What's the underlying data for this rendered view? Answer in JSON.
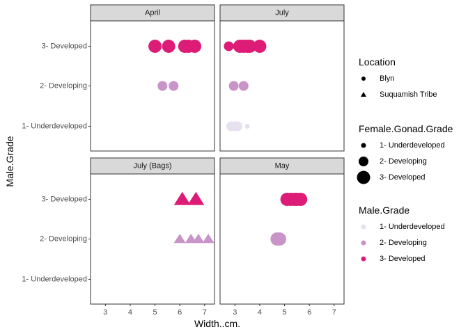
{
  "chart_data": {
    "type": "scatter",
    "facet_layout": "2x2",
    "xlabel": "Width..cm.",
    "ylabel": "Male.Grade",
    "xlim": [
      2.4,
      7.4
    ],
    "x_ticks": [
      3,
      4,
      5,
      6,
      7
    ],
    "categories": [
      "1- Underdeveloped",
      "2- Developing",
      "3- Developed"
    ],
    "grid": false,
    "legend_position": "right",
    "panels": [
      {
        "label": "April",
        "points": [
          {
            "x": 5.0,
            "y": "3- Developed",
            "location": "Blyn",
            "female_grade": 3,
            "male_grade": 3
          },
          {
            "x": 5.55,
            "y": "3- Developed",
            "location": "Blyn",
            "female_grade": 3,
            "male_grade": 3
          },
          {
            "x": 6.2,
            "y": "3- Developed",
            "location": "Blyn",
            "female_grade": 3,
            "male_grade": 3
          },
          {
            "x": 6.35,
            "y": "3- Developed",
            "location": "Blyn",
            "female_grade": 3,
            "male_grade": 3
          },
          {
            "x": 6.6,
            "y": "3- Developed",
            "location": "Blyn",
            "female_grade": 3,
            "male_grade": 3
          },
          {
            "x": 5.3,
            "y": "2- Developing",
            "location": "Blyn",
            "female_grade": 2,
            "male_grade": 2
          },
          {
            "x": 5.75,
            "y": "2- Developing",
            "location": "Blyn",
            "female_grade": 2,
            "male_grade": 2
          }
        ]
      },
      {
        "label": "July",
        "points": [
          {
            "x": 2.75,
            "y": "3- Developed",
            "location": "Blyn",
            "female_grade": 2,
            "male_grade": 3
          },
          {
            "x": 2.9,
            "y": "3- Developed",
            "location": "Blyn",
            "female_grade": 1,
            "male_grade": 3
          },
          {
            "x": 3.2,
            "y": "3- Developed",
            "location": "Blyn",
            "female_grade": 3,
            "male_grade": 3
          },
          {
            "x": 3.35,
            "y": "3- Developed",
            "location": "Blyn",
            "female_grade": 3,
            "male_grade": 3
          },
          {
            "x": 3.5,
            "y": "3- Developed",
            "location": "Blyn",
            "female_grade": 3,
            "male_grade": 3
          },
          {
            "x": 3.6,
            "y": "3- Developed",
            "location": "Blyn",
            "female_grade": 3,
            "male_grade": 3
          },
          {
            "x": 4.0,
            "y": "3- Developed",
            "location": "Blyn",
            "female_grade": 3,
            "male_grade": 3
          },
          {
            "x": 2.95,
            "y": "2- Developing",
            "location": "Blyn",
            "female_grade": 2,
            "male_grade": 2
          },
          {
            "x": 3.35,
            "y": "2- Developing",
            "location": "Blyn",
            "female_grade": 2,
            "male_grade": 2
          },
          {
            "x": 2.85,
            "y": "1- Underdeveloped",
            "location": "Blyn",
            "female_grade": 2,
            "male_grade": 1
          },
          {
            "x": 3.0,
            "y": "1- Underdeveloped",
            "location": "Blyn",
            "female_grade": 2,
            "male_grade": 1
          },
          {
            "x": 3.1,
            "y": "1- Underdeveloped",
            "location": "Blyn",
            "female_grade": 2,
            "male_grade": 1
          },
          {
            "x": 3.5,
            "y": "1- Underdeveloped",
            "location": "Blyn",
            "female_grade": 1,
            "male_grade": 1
          }
        ]
      },
      {
        "label": "July (Bags)",
        "points": [
          {
            "x": 6.1,
            "y": "3- Developed",
            "location": "Suquamish Tribe",
            "female_grade": 3,
            "male_grade": 3
          },
          {
            "x": 6.65,
            "y": "3- Developed",
            "location": "Suquamish Tribe",
            "female_grade": 3,
            "male_grade": 3
          },
          {
            "x": 6.0,
            "y": "2- Developing",
            "location": "Suquamish Tribe",
            "female_grade": 2,
            "male_grade": 2
          },
          {
            "x": 6.45,
            "y": "2- Developing",
            "location": "Suquamish Tribe",
            "female_grade": 2,
            "male_grade": 2
          },
          {
            "x": 6.75,
            "y": "2- Developing",
            "location": "Suquamish Tribe",
            "female_grade": 2,
            "male_grade": 2
          },
          {
            "x": 7.15,
            "y": "2- Developing",
            "location": "Suquamish Tribe",
            "female_grade": 2,
            "male_grade": 2
          }
        ]
      },
      {
        "label": "May",
        "points": [
          {
            "x": 5.1,
            "y": "3- Developed",
            "location": "Blyn",
            "female_grade": 3,
            "male_grade": 3
          },
          {
            "x": 5.25,
            "y": "3- Developed",
            "location": "Blyn",
            "female_grade": 3,
            "male_grade": 3
          },
          {
            "x": 5.4,
            "y": "3- Developed",
            "location": "Blyn",
            "female_grade": 3,
            "male_grade": 3
          },
          {
            "x": 5.5,
            "y": "3- Developed",
            "location": "Blyn",
            "female_grade": 3,
            "male_grade": 3
          },
          {
            "x": 5.65,
            "y": "3- Developed",
            "location": "Blyn",
            "female_grade": 3,
            "male_grade": 3
          },
          {
            "x": 4.7,
            "y": "2- Developing",
            "location": "Blyn",
            "female_grade": 3,
            "male_grade": 2
          },
          {
            "x": 4.8,
            "y": "2- Developing",
            "location": "Blyn",
            "female_grade": 3,
            "male_grade": 2
          }
        ]
      }
    ],
    "legends": [
      {
        "title": "Location",
        "type": "shape",
        "entries": [
          {
            "label": "Blyn",
            "shape": "circle"
          },
          {
            "label": "Suquamish Tribe",
            "shape": "triangle"
          }
        ]
      },
      {
        "title": "Female.Gonad.Grade",
        "type": "size",
        "entries": [
          {
            "label": "1- Underdeveloped",
            "size": 1
          },
          {
            "label": "2- Developing",
            "size": 2
          },
          {
            "label": "3- Developed",
            "size": 3
          }
        ]
      },
      {
        "title": "Male.Grade",
        "type": "color",
        "entries": [
          {
            "label": "1- Underdeveloped",
            "color": "#e7e1ef"
          },
          {
            "label": "2- Developing",
            "color": "#c994c7"
          },
          {
            "label": "3- Developed",
            "color": "#dd1c77"
          }
        ]
      }
    ],
    "colors": {
      "1- Underdeveloped": "#e7e1ef",
      "2- Developing": "#c994c7",
      "3- Developed": "#dd1c77",
      "strip_fill": "#d9d9d9",
      "panel_border": "#333333"
    }
  }
}
